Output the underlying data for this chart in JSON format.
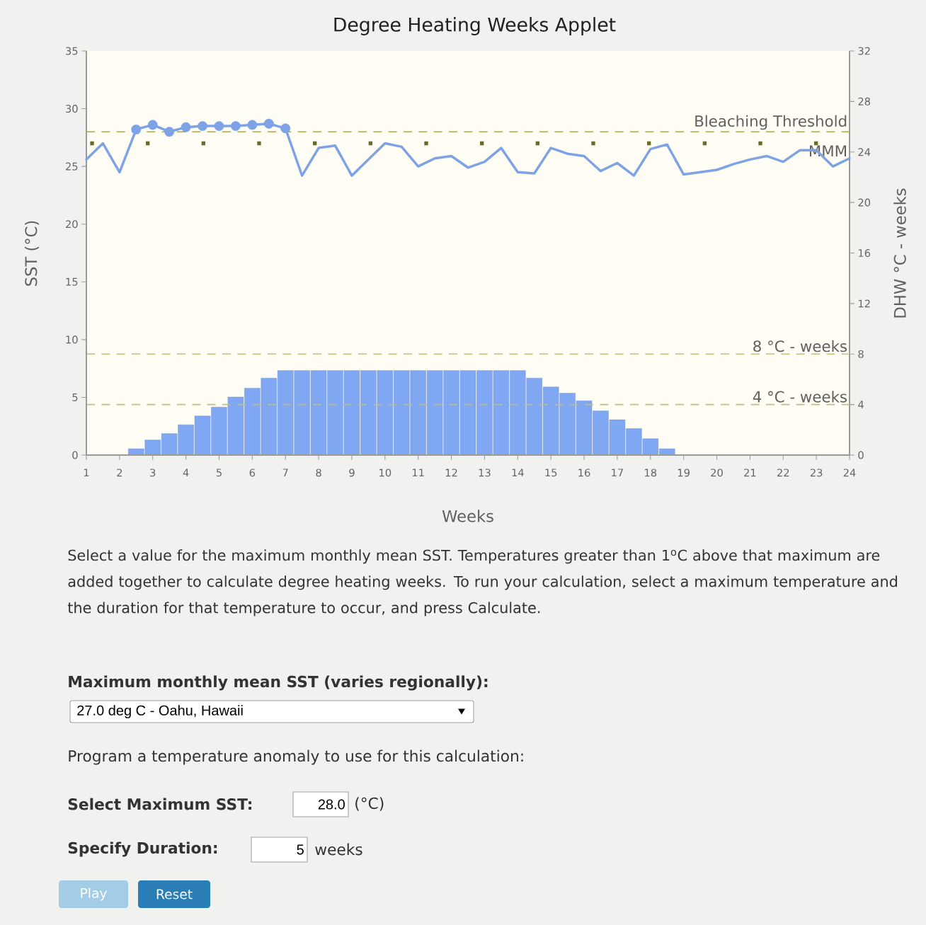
{
  "chart_data": {
    "type": "line",
    "title": "Degree Heating Weeks Applet",
    "xlabel": "Weeks",
    "ylabel": "SST (°C)",
    "y2label": "DHW °C - weeks",
    "xlim": [
      1,
      24
    ],
    "xticks": [
      1,
      2,
      3,
      4,
      5,
      6,
      7,
      8,
      9,
      10,
      11,
      12,
      13,
      14,
      15,
      16,
      17,
      18,
      19,
      20,
      21,
      22,
      23,
      24
    ],
    "ylim": [
      0,
      35
    ],
    "yticks": [
      0,
      5,
      10,
      15,
      20,
      25,
      30,
      35
    ],
    "y2lim": [
      0,
      32
    ],
    "y2ticks": [
      0,
      4,
      8,
      12,
      16,
      20,
      24,
      28,
      32
    ],
    "series": [
      {
        "type": "bar",
        "axis": "y2",
        "color": "#7fa7f2",
        "x": [
          2.5,
          3,
          3.5,
          4,
          4.5,
          5,
          5.5,
          6,
          6.5,
          7,
          7.5,
          8,
          8.5,
          9,
          9.5,
          10,
          10.5,
          11,
          11.5,
          12,
          12.5,
          13,
          13.5,
          14,
          14.5,
          15,
          15.5,
          16,
          16.5,
          17,
          17.5,
          18,
          18.5
        ],
        "values": [
          0.5,
          1.2,
          1.7,
          2.4,
          3.1,
          3.8,
          4.6,
          5.3,
          6.1,
          6.7,
          6.7,
          6.7,
          6.7,
          6.7,
          6.7,
          6.7,
          6.7,
          6.7,
          6.7,
          6.7,
          6.7,
          6.7,
          6.7,
          6.7,
          6.1,
          5.4,
          4.9,
          4.3,
          3.5,
          2.8,
          2.1,
          1.3,
          0.5
        ]
      },
      {
        "color": "#7da3e6",
        "x": [
          1,
          1.5,
          2,
          2.5,
          3,
          3.5,
          4,
          4.5,
          5,
          5.5,
          6,
          6.5,
          7,
          7.5,
          8,
          8.5,
          9,
          9.5,
          10,
          10.5,
          11,
          11.5,
          12,
          12.5,
          13,
          13.5,
          14,
          14.5,
          15,
          15.5,
          16,
          16.5,
          17,
          17.5,
          18,
          18.5,
          19,
          19.5,
          20,
          20.5,
          21,
          21.5,
          22,
          22.5,
          23,
          23.5,
          24
        ],
        "values": [
          25.6,
          27.0,
          24.5,
          28.2,
          28.6,
          28.0,
          28.4,
          28.5,
          28.5,
          28.5,
          28.6,
          28.7,
          28.3,
          24.2,
          26.6,
          26.8,
          24.2,
          25.6,
          27.0,
          26.7,
          25.0,
          25.7,
          25.9,
          24.9,
          25.4,
          26.6,
          24.5,
          24.4,
          26.6,
          26.1,
          25.9,
          24.6,
          25.3,
          24.2,
          26.5,
          26.9,
          24.3,
          24.5,
          24.7,
          25.2,
          25.6,
          25.9,
          25.4,
          26.4,
          26.4,
          25.0,
          25.7
        ]
      },
      {
        "type": "scatter",
        "marker": "circle",
        "color": "#7da3e6",
        "x": [
          2.5,
          3,
          3.5,
          4,
          4.5,
          5,
          5.5,
          6,
          6.5,
          7
        ],
        "values": [
          28.2,
          28.6,
          28.0,
          28.4,
          28.5,
          28.5,
          28.5,
          28.6,
          28.7,
          28.3
        ]
      }
    ],
    "ref_lines": [
      {
        "axis": "y",
        "value": 28,
        "label": "Bleaching Threshold",
        "color": "#a8a557",
        "line_style": "dashed"
      },
      {
        "axis": "y",
        "value": 27,
        "label": "MMM",
        "color": "#6b6a2a",
        "line_style": "dotted"
      },
      {
        "axis": "y2",
        "value": 8,
        "label": "8 °C - weeks",
        "color": "#c4bb80",
        "line_style": "dashed"
      },
      {
        "axis": "y2",
        "value": 4,
        "label": "4 °C - weeks",
        "color": "#c4bb80",
        "line_style": "dashed"
      }
    ],
    "annotations": [
      "Select a value for the maximum monthly mean SST. Temperatures greater than 1$^{o}$C above that maximum are added together to calculate degree heating weeks. To run your calculation, select a maximum temperature and the duration for that temperature to occur, and press Calculate.",
      "Maximum monthly mean SST (varies regionally):",
      "27.0 deg C - Oahu, Hawaii",
      "Program a temperature anomaly to use for this calculation:",
      "Select Maximum SST:",
      "28.0",
      "(°C)",
      "Specify Duration:",
      "5",
      "weeks",
      "Play",
      "Reset"
    ]
  }
}
